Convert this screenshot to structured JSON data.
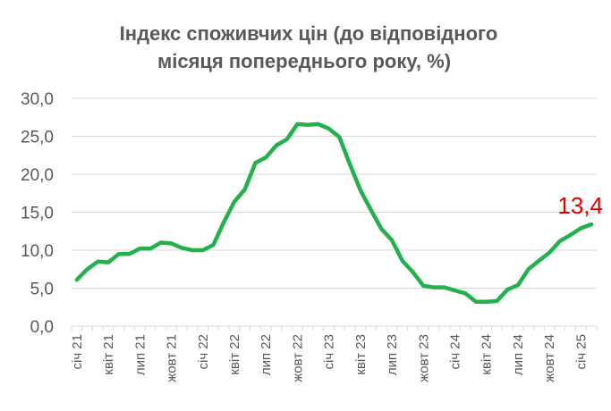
{
  "colors": {
    "line": "#22b14c",
    "annotation": "#e00000",
    "text": "#595959",
    "grid": "#d9d9d9"
  },
  "chart_data": {
    "type": "line",
    "title_lines": [
      "Індекс споживчих цін (до відповідного",
      "місяця попереднього року, %)"
    ],
    "xlabel": "",
    "ylabel": "",
    "ylim": [
      0,
      30
    ],
    "y_ticks": [
      0,
      5,
      10,
      15,
      20,
      25,
      30
    ],
    "y_tick_labels": [
      "0,0",
      "5,0",
      "10,0",
      "15,0",
      "20,0",
      "25,0",
      "30,0"
    ],
    "grid": true,
    "legend": "none",
    "x": [
      "січ 21",
      "лют 21",
      "бер 21",
      "квіт 21",
      "трав 21",
      "черв 21",
      "лип 21",
      "серп 21",
      "вер 21",
      "жовт 21",
      "лист 21",
      "груд 21",
      "січ 22",
      "лют 22",
      "бер 22",
      "квіт 22",
      "трав 22",
      "черв 22",
      "лип 22",
      "серп 22",
      "вер 22",
      "жовт 22",
      "лист 22",
      "груд 22",
      "січ 23",
      "лют 23",
      "бер 23",
      "квіт 23",
      "трав 23",
      "черв 23",
      "лип 23",
      "серп 23",
      "вер 23",
      "жовт 23",
      "лист 23",
      "груд 23",
      "січ 24",
      "лют 24",
      "бер 24",
      "квіт 24",
      "трав 24",
      "черв 24",
      "лип 24",
      "серп 24",
      "вер 24",
      "жовт 24",
      "лист 24",
      "груд 24",
      "січ 25",
      "лют 25"
    ],
    "x_tick_labels": [
      "січ 21",
      "квіт 21",
      "лип 21",
      "жовт 21",
      "січ 22",
      "квіт 22",
      "лип 22",
      "жовт 22",
      "січ 23",
      "квіт 23",
      "лип 23",
      "жовт 23",
      "січ 24",
      "квіт 24",
      "лип 24",
      "жовт 24",
      "січ 25"
    ],
    "series": [
      {
        "values": [
          6.1,
          7.5,
          8.5,
          8.4,
          9.5,
          9.5,
          10.2,
          10.2,
          11.0,
          10.9,
          10.3,
          10.0,
          10.0,
          10.7,
          13.7,
          16.4,
          18.0,
          21.5,
          22.2,
          23.8,
          24.6,
          26.6,
          26.5,
          26.6,
          26.0,
          24.9,
          21.3,
          17.9,
          15.3,
          12.8,
          11.3,
          8.6,
          7.1,
          5.3,
          5.1,
          5.1,
          4.7,
          4.3,
          3.2,
          3.2,
          3.3,
          4.8,
          5.4,
          7.5,
          8.6,
          9.7,
          11.2,
          12.0,
          12.9,
          13.4
        ]
      }
    ],
    "annotations": [
      {
        "text": "13,4",
        "x": "лют 25",
        "y": 13.4
      }
    ]
  }
}
